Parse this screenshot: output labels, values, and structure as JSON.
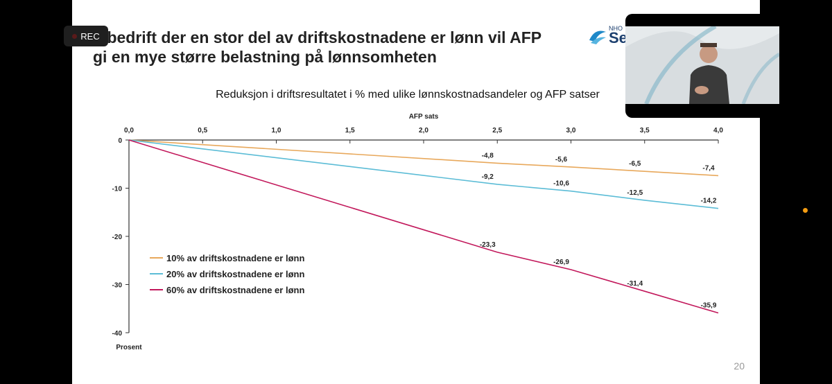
{
  "slide": {
    "title_line1": "n bedrift der en stor del av driftskostnadene er lønn vil AFP",
    "title_line2": "gi en mye større belastning på lønnsomheten",
    "page_number": "20",
    "logo_small": "NHO",
    "logo_big": "Se"
  },
  "recording": {
    "label": "REC"
  },
  "colors": {
    "series1": "#e8a85b",
    "series2": "#5bbcd6",
    "series3": "#c2185b"
  },
  "chart_data": {
    "type": "line",
    "title": "Reduksjon i driftsresultatet i % med ulike lønnskostnadsandeler og AFP satser",
    "xlabel": "AFP sats",
    "ylabel": "Prosent",
    "x_axis_position": "top",
    "xlim": [
      0,
      4
    ],
    "ylim": [
      -40,
      0
    ],
    "x_ticks": [
      "0,0",
      "0,5",
      "1,0",
      "1,5",
      "2,0",
      "2,5",
      "3,0",
      "3,5",
      "4,0"
    ],
    "y_ticks": [
      "0",
      "-10",
      "-20",
      "-30",
      "-40"
    ],
    "legend_position": "bottom-left",
    "grid": false,
    "series": [
      {
        "name": "10% av driftskostnadene er lønn",
        "x": [
          0,
          2.5,
          3.0,
          3.5,
          4.0
        ],
        "y": [
          0,
          -4.8,
          -5.6,
          -6.5,
          -7.4
        ],
        "labels": [
          "",
          "-4,8",
          "-5,6",
          "-6,5",
          "-7,4"
        ]
      },
      {
        "name": "20% av driftskostnadene er lønn",
        "x": [
          0,
          2.5,
          3.0,
          3.5,
          4.0
        ],
        "y": [
          0,
          -9.2,
          -10.6,
          -12.5,
          -14.2
        ],
        "labels": [
          "",
          "-9,2",
          "-10,6",
          "-12,5",
          "-14,2"
        ]
      },
      {
        "name": "60% av driftskostnadene er lønn",
        "x": [
          0,
          2.5,
          3.0,
          3.5,
          4.0
        ],
        "y": [
          0,
          -23.3,
          -26.9,
          -31.4,
          -35.9
        ],
        "labels": [
          "",
          "-23,3",
          "-26,9",
          "-31,4",
          "-35,9"
        ]
      }
    ]
  }
}
